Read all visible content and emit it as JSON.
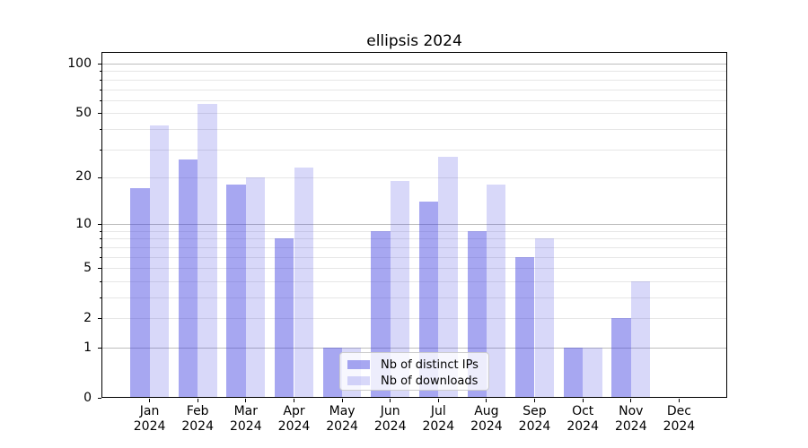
{
  "title": "ellipsis 2024",
  "chart_data": {
    "type": "bar",
    "title": "ellipsis 2024",
    "categories": [
      "Jan 2024",
      "Feb 2024",
      "Mar 2024",
      "Apr 2024",
      "May 2024",
      "Jun 2024",
      "Jul 2024",
      "Aug 2024",
      "Sep 2024",
      "Oct 2024",
      "Nov 2024",
      "Dec 2024"
    ],
    "series": [
      {
        "name": "Nb of distinct IPs",
        "values": [
          17,
          26,
          18,
          8,
          1,
          9,
          14,
          9,
          6,
          1,
          2,
          0
        ],
        "base_color": "#3c3ce1",
        "alpha": 0.45,
        "appears_as": "#a8a8ef"
      },
      {
        "name": "Nb of downloads",
        "values": [
          42,
          57,
          20,
          23,
          1,
          19,
          27,
          18,
          8,
          1,
          4,
          0
        ],
        "base_color": "#3c3ce1",
        "alpha": 0.2,
        "appears_as": "#d9d9f8"
      }
    ],
    "yscale": "log1p",
    "ylim": [
      0,
      100
    ],
    "y_ticks": [
      0,
      1,
      2,
      5,
      10,
      20,
      50,
      100
    ],
    "y_major_gridlines": [
      1,
      10,
      100
    ],
    "y_minor_gridlines": [
      3,
      4,
      6,
      7,
      8,
      9,
      30,
      40,
      60,
      70,
      80,
      90
    ],
    "grid": true,
    "legend_position": "lower center-left",
    "colors": {
      "grid_major": "#bdbdbd",
      "grid_minor": "#e6e6e6",
      "axis": "#000000",
      "legend_border": "#cccccc"
    }
  }
}
